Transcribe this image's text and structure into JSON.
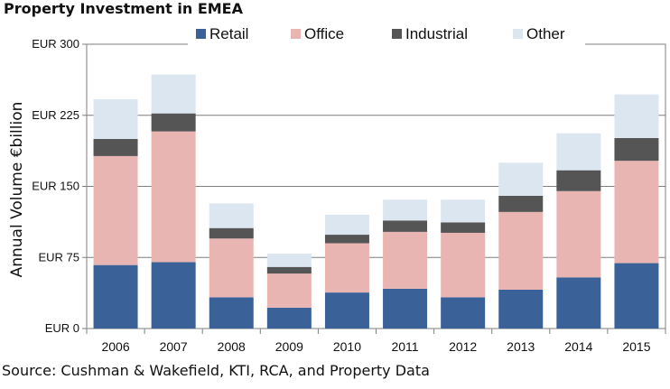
{
  "chart_data": {
    "type": "bar",
    "stacked": true,
    "title": "Property Investment in EMEA",
    "ylabel": "Annual Volume €billion",
    "xlabel": "",
    "categories": [
      "2006",
      "2007",
      "2008",
      "2009",
      "2010",
      "2011",
      "2012",
      "2013",
      "2014",
      "2015"
    ],
    "series": [
      {
        "name": "Retail",
        "color": "#3a6298",
        "values": [
          67,
          70,
          33,
          22,
          38,
          42,
          33,
          41,
          54,
          69
        ]
      },
      {
        "name": "Office",
        "color": "#e9b5b3",
        "values": [
          115,
          138,
          62,
          36,
          52,
          60,
          68,
          82,
          91,
          108
        ]
      },
      {
        "name": "Industrial",
        "color": "#555555",
        "values": [
          18,
          19,
          11,
          7,
          9,
          12,
          11,
          17,
          22,
          24
        ]
      },
      {
        "name": "Other",
        "color": "#dce6f1",
        "values": [
          42,
          41,
          26,
          14,
          21,
          22,
          24,
          35,
          39,
          46
        ]
      }
    ],
    "ylim": [
      0,
      300
    ],
    "yticks": [
      0,
      75,
      150,
      225,
      300
    ],
    "ytick_labels": [
      "EUR 0",
      "EUR 75",
      "EUR 150",
      "EUR 225",
      "EUR 300"
    ],
    "legend_position": "top",
    "grid": true
  },
  "source_text": "Source: Cushman & Wakefield, KTI, RCA, and Property Data"
}
